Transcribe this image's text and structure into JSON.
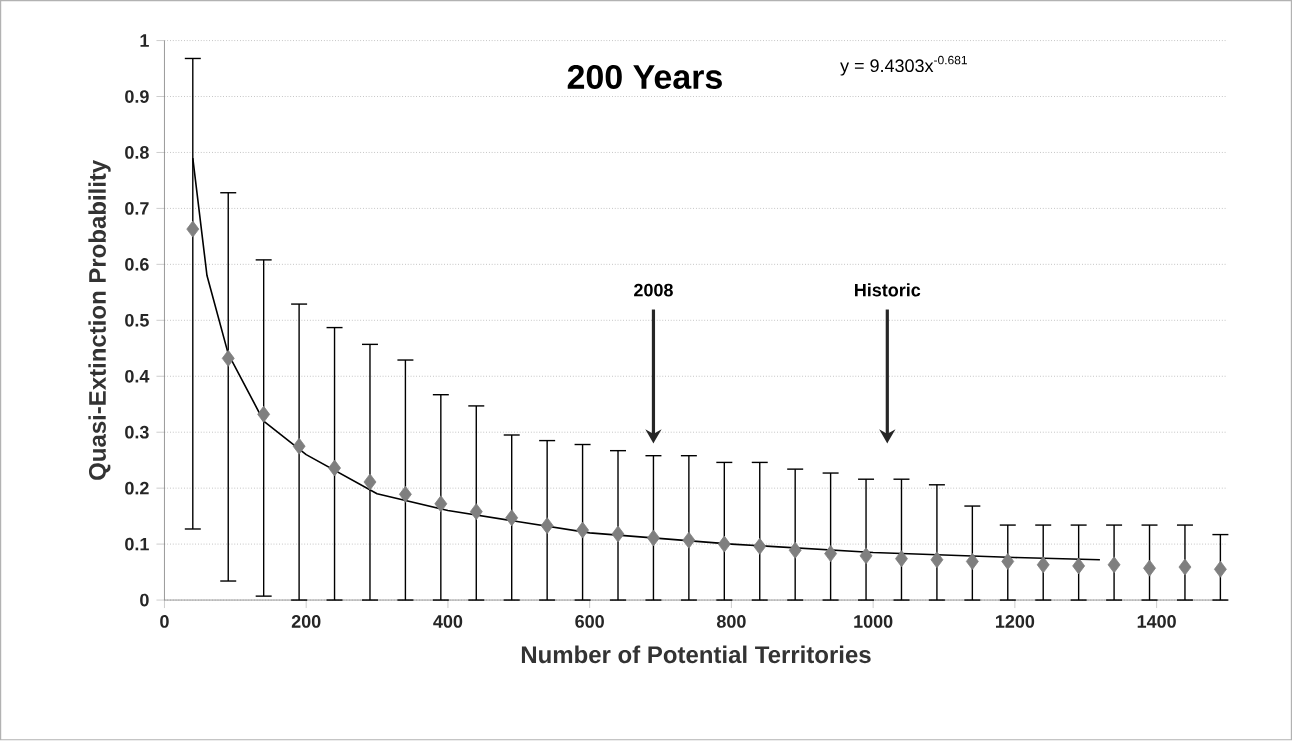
{
  "chart_data": {
    "type": "scatter",
    "title": "200 Years",
    "xlabel": "Number of Potential Territories",
    "ylabel": "Quasi-Extinction Probability",
    "annotations": [
      "y = 9.4303x$^{-0.681}$",
      "2008",
      "Historic"
    ],
    "x": [
      40,
      90,
      140,
      190,
      240,
      290,
      340,
      390,
      440,
      490,
      540,
      590,
      640,
      690,
      740,
      790,
      840,
      890,
      940,
      990,
      1040,
      1090,
      1140,
      1190,
      1240,
      1290,
      1340,
      1390,
      1440,
      1490
    ],
    "series": [
      {
        "color": "#7f7f7f",
        "marker": "diamond",
        "values": [
          0.663,
          0.432,
          0.332,
          0.275,
          0.236,
          0.211,
          0.189,
          0.172,
          0.158,
          0.147,
          0.133,
          0.125,
          0.118,
          0.111,
          0.107,
          0.1,
          0.096,
          0.089,
          0.083,
          0.079,
          0.074,
          0.072,
          0.069,
          0.069,
          0.063,
          0.061,
          0.063,
          0.057,
          0.059,
          0.055
        ],
        "errors": [
          [
            0.127,
            0.968
          ],
          [
            0.034,
            0.728
          ],
          [
            0.007,
            0.608
          ],
          [
            0,
            0.529
          ],
          [
            0,
            0.487
          ],
          [
            0,
            0.457
          ],
          [
            0,
            0.429
          ],
          [
            0,
            0.367
          ],
          [
            0,
            0.347
          ],
          [
            0,
            0.295
          ],
          [
            0,
            0.285
          ],
          [
            0,
            0.278
          ],
          [
            0,
            0.267
          ],
          [
            0,
            0.258
          ],
          [
            0,
            0.258
          ],
          [
            0,
            0.246
          ],
          [
            0,
            0.246
          ],
          [
            0,
            0.234
          ],
          [
            0,
            0.227
          ],
          [
            0,
            0.216
          ],
          [
            0,
            0.216
          ],
          [
            0,
            0.206
          ],
          [
            0,
            0.168
          ],
          [
            0,
            0.134
          ],
          [
            0,
            0.134
          ],
          [
            0,
            0.134
          ],
          [
            0,
            0.134
          ],
          [
            0,
            0.134
          ],
          [
            0,
            0.134
          ],
          [
            0,
            0.117
          ]
        ]
      },
      {
        "type": "line",
        "color": "#000000",
        "marker": "none",
        "x": [
          40,
          60,
          90,
          140,
          200,
          300,
          400,
          500,
          600,
          800,
          1000,
          1200,
          1320
        ],
        "values": [
          0.79,
          0.58,
          0.44,
          0.32,
          0.26,
          0.19,
          0.16,
          0.14,
          0.12,
          0.1,
          0.085,
          0.076,
          0.072
        ]
      }
    ],
    "xlim": [
      0,
      1500
    ],
    "xticks": [
      0,
      200,
      400,
      600,
      800,
      1000,
      1200,
      1400
    ],
    "ylim": [
      0,
      1
    ],
    "yticks": [
      0,
      0.1,
      0.2,
      0.3,
      0.4,
      0.5,
      0.6,
      0.7,
      0.8,
      0.9,
      1
    ],
    "grid": "y"
  }
}
